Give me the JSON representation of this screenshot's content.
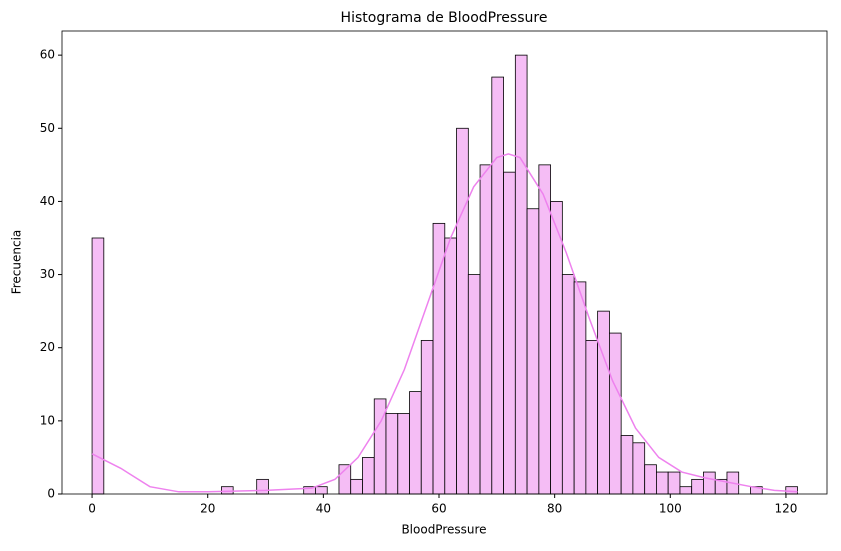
{
  "chart_data": {
    "type": "histogram",
    "title": "Histograma de BloodPressure",
    "x_label": "BloodPressure",
    "y_label": "Frecuencia",
    "bins": [
      0,
      2.03,
      4.07,
      6.1,
      8.13,
      10.17,
      12.2,
      14.23,
      16.27,
      18.3,
      20.33,
      22.37,
      24.4,
      26.43,
      28.47,
      30.5,
      32.53,
      34.57,
      36.6,
      38.63,
      40.67,
      42.7,
      44.73,
      46.77,
      48.8,
      50.83,
      52.87,
      54.9,
      56.93,
      58.97,
      61,
      63.03,
      65.07,
      67.1,
      69.13,
      71.17,
      73.2,
      75.23,
      77.27,
      79.3,
      81.33,
      83.37,
      85.4,
      87.43,
      89.47,
      91.5,
      93.53,
      95.57,
      97.6,
      99.63,
      101.67,
      103.7,
      105.73,
      107.77,
      109.8,
      111.83,
      113.87,
      115.9,
      117.93,
      119.97,
      122
    ],
    "counts": [
      35,
      0,
      0,
      0,
      0,
      0,
      0,
      0,
      0,
      0,
      0,
      1,
      0,
      0,
      2,
      0,
      0,
      0,
      1,
      1,
      0,
      4,
      2,
      5,
      13,
      11,
      11,
      14,
      21,
      37,
      35,
      50,
      30,
      45,
      57,
      44,
      60,
      39,
      45,
      40,
      30,
      29,
      21,
      25,
      22,
      8,
      7,
      4,
      3,
      3,
      1,
      2,
      3,
      2,
      3,
      0,
      1,
      0,
      0,
      1
    ],
    "color": "#f5bdf5",
    "edge_color": "#000000",
    "kde": {
      "color": "#ee82ee",
      "x": [
        0,
        5,
        10,
        15,
        20,
        30,
        38,
        42,
        46,
        50,
        54,
        58,
        62,
        66,
        70,
        72,
        74,
        78,
        82,
        86,
        90,
        94,
        98,
        102,
        106,
        110,
        114,
        118,
        122
      ],
      "values": [
        5.5,
        3.5,
        1,
        0.3,
        0.3,
        0.5,
        0.8,
        2,
        5,
        10,
        17,
        26,
        35,
        42,
        46,
        46.5,
        46,
        41,
        33,
        24,
        15.5,
        9,
        5,
        3,
        2.2,
        1.6,
        1,
        0.5,
        0.3
      ]
    },
    "xlim": [
      -5.2,
      127.1
    ],
    "ylim": [
      0,
      63.3
    ],
    "xticks": [
      0,
      20,
      40,
      60,
      80,
      100,
      120
    ],
    "yticks": [
      0,
      10,
      20,
      30,
      40,
      50,
      60
    ]
  }
}
